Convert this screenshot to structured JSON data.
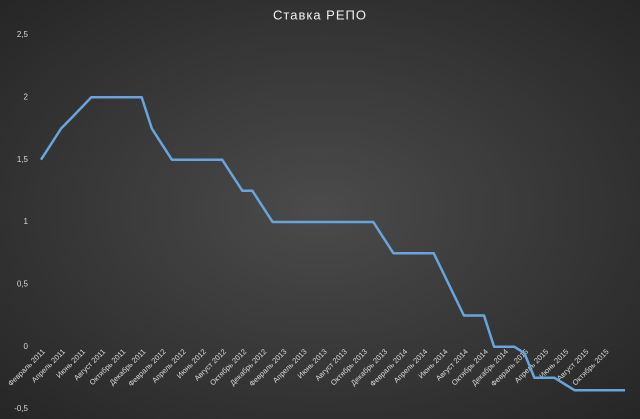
{
  "chart_data": {
    "type": "line",
    "title": "Ставка РЕПО",
    "categories": [
      "Февраль 2011",
      null,
      "Апрель 2011",
      null,
      "Июнь 2011",
      null,
      "Август 2011",
      null,
      "Октябрь 2011",
      null,
      "Декабрь 2011",
      null,
      "Февраль 2012",
      null,
      "Апрель 2012",
      null,
      "Июнь 2012",
      null,
      "Август 2012",
      null,
      "Октябрь 2012",
      null,
      "Декабрь 2012",
      null,
      "Февраль 2013",
      null,
      "Апрель 2013",
      null,
      "Июнь 2013",
      null,
      "Август 2013",
      null,
      "Октябрь 2013",
      null,
      "Декабрь 2013",
      null,
      "Февраль 2014",
      null,
      "Апрель 2014",
      null,
      "Июнь 2014",
      null,
      "Август 2014",
      null,
      "Октябрь 2014",
      null,
      "Декабрь 2014",
      null,
      "Февраль 2015",
      null,
      "Апрель 2015",
      null,
      "Июнь 2015",
      null,
      "Август 2015",
      null,
      "Октябрь 2015",
      null,
      null
    ],
    "series": [
      {
        "color": "#6aa4dc",
        "values": [
          1.5,
          1.625,
          1.75,
          1.833,
          1.917,
          2,
          2,
          2,
          2,
          2,
          2,
          1.75,
          1.625,
          1.5,
          1.5,
          1.5,
          1.5,
          1.5,
          1.5,
          1.375,
          1.25,
          1.25,
          1.125,
          1,
          1,
          1,
          1,
          1,
          1,
          1,
          1,
          1,
          1,
          1,
          0.875,
          0.75,
          0.75,
          0.75,
          0.75,
          0.75,
          0.583,
          0.417,
          0.25,
          0.25,
          0.25,
          0,
          0,
          0,
          -0.05,
          -0.25,
          -0.25,
          -0.25,
          -0.3,
          -0.35,
          -0.35,
          -0.35,
          -0.35,
          -0.35,
          -0.35
        ]
      }
    ],
    "ylim": [
      -0.5,
      2.5
    ],
    "yticks": [
      {
        "value": -0.5,
        "label": "-0,5"
      },
      0,
      {
        "value": 0.5,
        "label": "0,5"
      },
      1,
      {
        "value": 1.5,
        "label": "1,5"
      },
      2,
      {
        "value": 2.5,
        "label": "2,5"
      }
    ],
    "grid": false
  }
}
